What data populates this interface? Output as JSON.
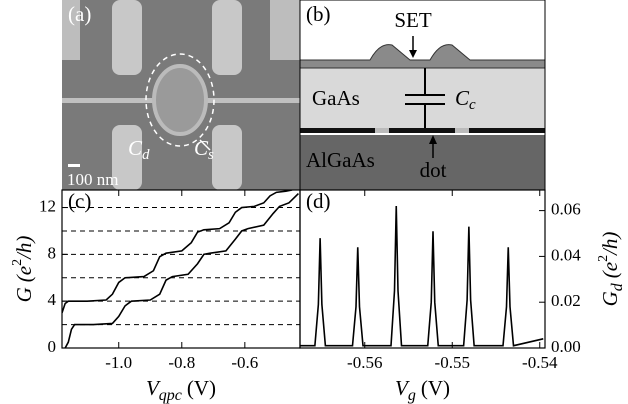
{
  "panels": {
    "a": {
      "label": "(a)",
      "cd": {
        "symbol": "C",
        "sub": "d"
      },
      "cs": {
        "symbol": "C",
        "sub": "s"
      },
      "scale": "100 nm"
    },
    "b": {
      "label": "(b)",
      "set": "SET",
      "gaas": "GaAs",
      "cc": {
        "symbol": "C",
        "sub": "c"
      },
      "algaas": "AlGaAs",
      "dot": "dot"
    }
  },
  "chart_data": [
    {
      "type": "line",
      "label": "(c)",
      "xlabel": {
        "symbol": "V",
        "sub": "qpc",
        "unit": "(V)"
      },
      "ylabel": {
        "symbol": "G",
        "pre": "(e",
        "sup": "2",
        "post": "/h)"
      },
      "xlim": [
        -1.18,
        -0.425
      ],
      "ylim": [
        0,
        13.5
      ],
      "xticks": [
        {
          "value": -1,
          "label": "-1.0"
        },
        -0.8,
        -0.6
      ],
      "yticks": [
        0,
        4,
        8,
        12
      ],
      "reference_lines": [
        2,
        4,
        6,
        8,
        10,
        12
      ],
      "series": [
        {
          "color": "#000",
          "x": [
            -1.18,
            -1.17,
            -1.16,
            -1.1,
            -1.04,
            -1.02,
            -1.0,
            -0.98,
            -0.92,
            -0.89,
            -0.87,
            -0.85,
            -0.8,
            -0.77,
            -0.75,
            -0.73,
            -0.68,
            -0.65,
            -0.63,
            -0.61,
            -0.57,
            -0.54,
            -0.52,
            -0.5,
            -0.47,
            -0.45
          ],
          "values": [
            3.0,
            3.8,
            4.0,
            4.0,
            4.1,
            4.6,
            5.6,
            6.0,
            6.1,
            6.6,
            7.8,
            8.1,
            8.3,
            9.0,
            9.9,
            10.1,
            10.2,
            10.7,
            11.6,
            12.0,
            12.1,
            12.4,
            13.0,
            13.3,
            13.4,
            13.5
          ]
        },
        {
          "color": "#000",
          "x": [
            -1.17,
            -1.16,
            -1.15,
            -1.14,
            -1.08,
            -1.02,
            -1.0,
            -0.98,
            -0.96,
            -0.9,
            -0.87,
            -0.85,
            -0.83,
            -0.78,
            -0.75,
            -0.73,
            -0.71,
            -0.66,
            -0.63,
            -0.61,
            -0.59,
            -0.54,
            -0.51,
            -0.49,
            -0.46,
            -0.43
          ],
          "values": [
            0,
            0.5,
            1.6,
            2.0,
            2.0,
            2.1,
            2.7,
            3.6,
            4.0,
            4.1,
            4.6,
            5.8,
            6.1,
            6.3,
            7.2,
            8.0,
            8.1,
            8.3,
            9.3,
            10.0,
            10.2,
            10.5,
            11.5,
            12.1,
            12.4,
            13.2
          ]
        }
      ]
    },
    {
      "type": "line",
      "label": "(d)",
      "xlabel": {
        "symbol": "V",
        "sub": "g",
        "unit": "(V)"
      },
      "ylabel": {
        "symbol": "G",
        "sub": "d",
        "pre": "(e",
        "sup": "2",
        "post": "/h)"
      },
      "xlim": [
        -0.5674,
        -0.5394
      ],
      "ylim": [
        0,
        0.069
      ],
      "xticks": [
        -0.56,
        -0.55,
        -0.54
      ],
      "yticks": [
        {
          "value": 0,
          "label": "0.00"
        },
        0.02,
        0.04,
        0.06
      ],
      "series": [
        {
          "color": "#000",
          "x": [
            -0.5674,
            -0.5657,
            -0.5653,
            -0.5651,
            -0.5649,
            -0.5645,
            -0.5614,
            -0.561,
            -0.5608,
            -0.5606,
            -0.5602,
            -0.557,
            -0.5566,
            -0.5564,
            -0.5562,
            -0.5558,
            -0.5528,
            -0.5524,
            -0.5522,
            -0.552,
            -0.5516,
            -0.5487,
            -0.5483,
            -0.5481,
            -0.5479,
            -0.5475,
            -0.5442,
            -0.5438,
            -0.5436,
            -0.5434,
            -0.543,
            -0.5396
          ],
          "values": [
            0.001,
            0.001,
            0.019,
            0.048,
            0.019,
            0.001,
            0.001,
            0.018,
            0.044,
            0.018,
            0.001,
            0.001,
            0.025,
            0.062,
            0.025,
            0.001,
            0.001,
            0.02,
            0.051,
            0.02,
            0.001,
            0.001,
            0.021,
            0.053,
            0.021,
            0.001,
            0.001,
            0.018,
            0.044,
            0.018,
            0.001,
            0.004
          ]
        }
      ]
    }
  ]
}
